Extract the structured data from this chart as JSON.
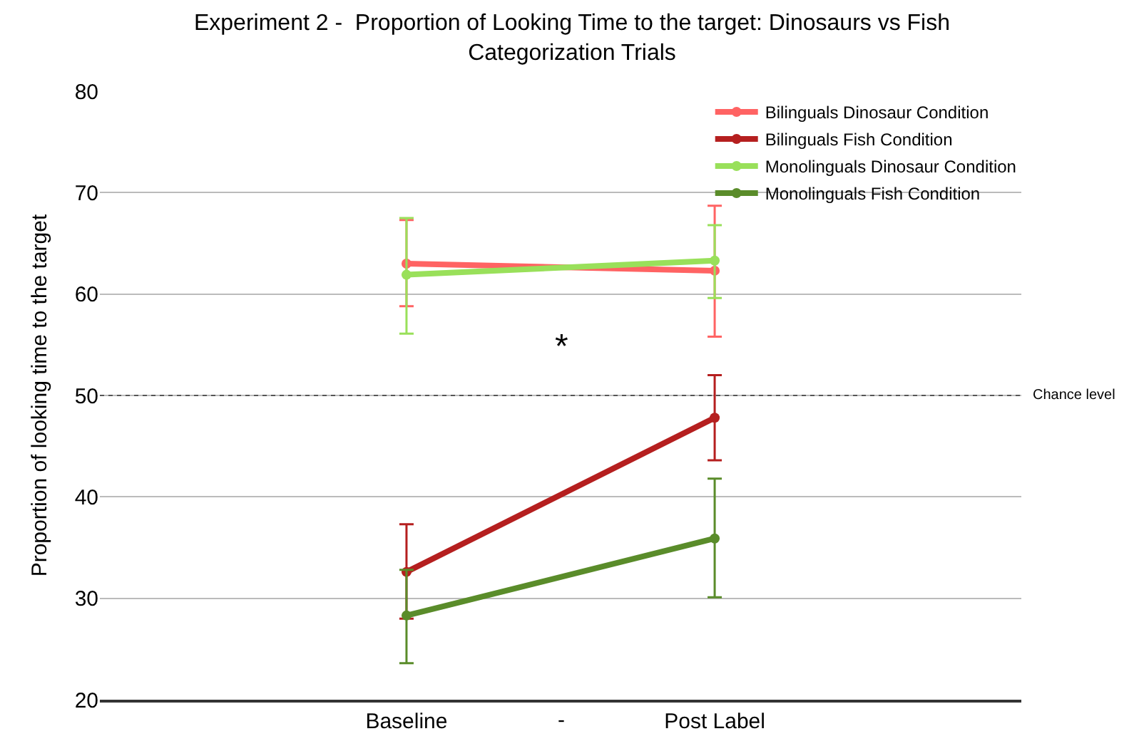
{
  "chart_data": {
    "type": "line",
    "title": "Experiment 2 -  Proportion of Looking Time to the target: Dinosaurs vs Fish Categorization Trials",
    "ylabel": "Proportion of looking time to the target",
    "categories": [
      "Baseline",
      "Post Label"
    ],
    "series": [
      {
        "name": "Bilinguals Dinosaur Condition",
        "color": "#ff6363",
        "values": [
          63.0,
          62.3
        ],
        "errors": [
          [
            58.8,
            67.3
          ],
          [
            55.8,
            68.7
          ]
        ]
      },
      {
        "name": "Bilinguals Fish Condition",
        "color": "#b51f1f",
        "values": [
          32.6,
          47.8
        ],
        "errors": [
          [
            28.0,
            37.3
          ],
          [
            43.6,
            52.0
          ]
        ]
      },
      {
        "name": "Monolinguals Dinosaur Condition",
        "color": "#99e05a",
        "values": [
          61.9,
          63.3
        ],
        "errors": [
          [
            56.1,
            67.5
          ],
          [
            59.6,
            66.8
          ]
        ]
      },
      {
        "name": "Monolinguals Fish Condition",
        "color": "#5a8c2a",
        "values": [
          28.3,
          35.9
        ],
        "errors": [
          [
            23.6,
            32.8
          ],
          [
            30.1,
            41.8
          ]
        ]
      }
    ],
    "ylim": [
      20,
      80
    ],
    "yticks": [
      20,
      30,
      40,
      50,
      60,
      70,
      80
    ],
    "ref_lines": [
      {
        "axis": "y",
        "value": 50,
        "label": "Chance level",
        "line_style": "dotted",
        "color": "#555555"
      }
    ],
    "annotations": [
      "-",
      "*"
    ],
    "grid": "y",
    "legend": "top right",
    "marker": "circle",
    "line_style": "solid"
  }
}
